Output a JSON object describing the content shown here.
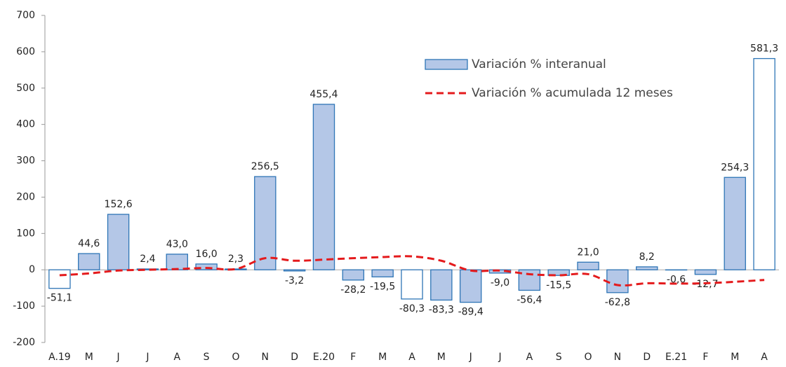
{
  "chart_data": {
    "type": "bar",
    "categories": [
      "A.19",
      "M",
      "J",
      "J",
      "A",
      "S",
      "O",
      "N",
      "D",
      "E.20",
      "F",
      "M",
      "A",
      "M",
      "J",
      "J",
      "A",
      "S",
      "O",
      "N",
      "D",
      "E.21",
      "F",
      "M",
      "A"
    ],
    "ylim": [
      -200,
      700
    ],
    "yticks": [
      -200,
      -100,
      0,
      100,
      200,
      300,
      400,
      500,
      600,
      700
    ],
    "series": [
      {
        "name": "Variación % interanual",
        "type": "bar",
        "color": "#2e75b6",
        "fills": [
          "#ffffff",
          "#b4c7e7",
          "#b4c7e7",
          "#b4c7e7",
          "#b4c7e7",
          "#b4c7e7",
          "#b4c7e7",
          "#b4c7e7",
          "#b4c7e7",
          "#b4c7e7",
          "#b4c7e7",
          "#b4c7e7",
          "#ffffff",
          "#b4c7e7",
          "#b4c7e7",
          "#b4c7e7",
          "#b4c7e7",
          "#b4c7e7",
          "#b4c7e7",
          "#b4c7e7",
          "#b4c7e7",
          "#b4c7e7",
          "#b4c7e7",
          "#b4c7e7",
          "#ffffff"
        ],
        "values": [
          -51.1,
          44.6,
          152.6,
          2.4,
          43.0,
          16.0,
          2.3,
          256.5,
          -3.2,
          455.4,
          -28.2,
          -19.5,
          -80.3,
          -83.3,
          -89.4,
          -9.0,
          -56.4,
          -15.5,
          21.0,
          -62.8,
          8.2,
          -0.6,
          -12.7,
          254.3,
          581.3
        ],
        "value_labels": [
          "-51,1",
          "44,6",
          "152,6",
          "2,4",
          "43,0",
          "16,0",
          "2,3",
          "256,5",
          "-3,2",
          "455,4",
          "-28,2",
          "-19,5",
          "-80,3",
          "-83,3",
          "-89,4",
          "-9,0",
          "-56,4",
          "-15,5",
          "21,0",
          "-62,8",
          "8,2",
          "-0,6",
          "-12,7",
          "254,3",
          "581,3"
        ]
      },
      {
        "name": "Variación % acumulada 12 meses",
        "type": "line",
        "color": "#e41a1c",
        "dashed": true,
        "values": [
          -15,
          -10,
          -2,
          0,
          2,
          5,
          2,
          32,
          25,
          28,
          32,
          35,
          37,
          25,
          -2,
          -2,
          -12,
          -15,
          -12,
          -42,
          -37,
          -38,
          -37,
          -33,
          -28
        ]
      }
    ]
  }
}
